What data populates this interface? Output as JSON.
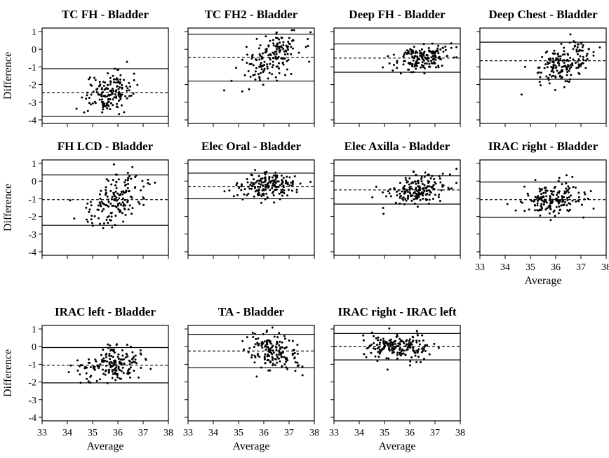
{
  "figure": {
    "ylabel": "Difference",
    "xlabel": "Average",
    "yticks": [
      "1",
      "0",
      "-1",
      "-2",
      "-3",
      "-4"
    ],
    "xticks": [
      "33",
      "34",
      "35",
      "36",
      "37",
      "38"
    ]
  },
  "chart_data": [
    {
      "type": "scatter",
      "title": "TC FH - Bladder",
      "xlim": [
        33,
        38
      ],
      "ylim": [
        -4.2,
        1.2
      ],
      "mean_diff": -2.45,
      "upper_loa": -1.1,
      "lower_loa": -3.8,
      "cloud": {
        "x_mean": 35.6,
        "x_sd": 0.45,
        "y_mean": -2.45,
        "y_sd": 0.55,
        "slope": 0.35,
        "n": 160
      },
      "show_x_axis": false
    },
    {
      "type": "scatter",
      "title": "TC FH2 - Bladder",
      "xlim": [
        33,
        38
      ],
      "ylim": [
        -4.2,
        1.2
      ],
      "mean_diff": -0.45,
      "upper_loa": 0.85,
      "lower_loa": -1.8,
      "cloud": {
        "x_mean": 36.3,
        "x_sd": 0.6,
        "y_mean": -0.45,
        "y_sd": 0.6,
        "slope": 0.55,
        "n": 170
      },
      "show_x_axis": false
    },
    {
      "type": "scatter",
      "title": "Deep FH - Bladder",
      "xlim": [
        33,
        38
      ],
      "ylim": [
        -4.2,
        1.2
      ],
      "mean_diff": -0.5,
      "upper_loa": 0.3,
      "lower_loa": -1.3,
      "cloud": {
        "x_mean": 36.5,
        "x_sd": 0.55,
        "y_mean": -0.45,
        "y_sd": 0.35,
        "slope": 0.2,
        "n": 170
      },
      "show_x_axis": false
    },
    {
      "type": "scatter",
      "title": "Deep Chest - Bladder",
      "xlim": [
        33,
        38
      ],
      "ylim": [
        -4.2,
        1.2
      ],
      "mean_diff": -0.65,
      "upper_loa": 0.4,
      "lower_loa": -1.7,
      "cloud": {
        "x_mean": 36.4,
        "x_sd": 0.55,
        "y_mean": -0.65,
        "y_sd": 0.55,
        "slope": 0.5,
        "n": 170
      },
      "show_x_axis": false
    },
    {
      "type": "scatter",
      "title": "FH LCD - Bladder",
      "xlim": [
        33,
        38
      ],
      "ylim": [
        -4.2,
        1.2
      ],
      "mean_diff": -1.05,
      "upper_loa": 0.35,
      "lower_loa": -2.5,
      "cloud": {
        "x_mean": 35.9,
        "x_sd": 0.6,
        "y_mean": -1.05,
        "y_sd": 0.7,
        "slope": 0.45,
        "n": 160
      },
      "show_x_axis": false
    },
    {
      "type": "scatter",
      "title": "Elec Oral - Bladder",
      "xlim": [
        33,
        38
      ],
      "ylim": [
        -4.2,
        1.2
      ],
      "mean_diff": -0.3,
      "upper_loa": 0.45,
      "lower_loa": -1.0,
      "cloud": {
        "x_mean": 36.2,
        "x_sd": 0.6,
        "y_mean": -0.25,
        "y_sd": 0.35,
        "slope": 0.1,
        "n": 170
      },
      "show_x_axis": false
    },
    {
      "type": "scatter",
      "title": "Elec Axilla - Bladder",
      "xlim": [
        33,
        38
      ],
      "ylim": [
        -4.2,
        1.2
      ],
      "mean_diff": -0.5,
      "upper_loa": 0.3,
      "lower_loa": -1.3,
      "cloud": {
        "x_mean": 36.4,
        "x_sd": 0.6,
        "y_mean": -0.5,
        "y_sd": 0.4,
        "slope": 0.2,
        "n": 180
      },
      "show_x_axis": false
    },
    {
      "type": "scatter",
      "title": "IRAC right - Bladder",
      "xlim": [
        33,
        38
      ],
      "ylim": [
        -4.2,
        1.2
      ],
      "mean_diff": -1.05,
      "upper_loa": -0.05,
      "lower_loa": -2.05,
      "cloud": {
        "x_mean": 35.9,
        "x_sd": 0.6,
        "y_mean": -1.05,
        "y_sd": 0.45,
        "slope": 0.1,
        "n": 170
      },
      "show_x_axis": true
    },
    {
      "type": "scatter",
      "title": "IRAC left - Bladder",
      "xlim": [
        33,
        38
      ],
      "ylim": [
        -4.2,
        1.2
      ],
      "mean_diff": -1.05,
      "upper_loa": -0.05,
      "lower_loa": -2.05,
      "cloud": {
        "x_mean": 35.8,
        "x_sd": 0.6,
        "y_mean": -1.05,
        "y_sd": 0.5,
        "slope": 0.15,
        "n": 170
      },
      "show_x_axis": true
    },
    {
      "type": "scatter",
      "title": "TA - Bladder",
      "xlim": [
        33,
        38
      ],
      "ylim": [
        -4.2,
        1.2
      ],
      "mean_diff": -0.25,
      "upper_loa": 0.7,
      "lower_loa": -1.2,
      "cloud": {
        "x_mean": 36.4,
        "x_sd": 0.5,
        "y_mean": -0.25,
        "y_sd": 0.5,
        "slope": -0.35,
        "n": 160
      },
      "show_x_axis": true
    },
    {
      "type": "scatter",
      "title": "IRAC right - IRAC left",
      "xlim": [
        33,
        38
      ],
      "ylim": [
        -4.2,
        1.2
      ],
      "mean_diff": 0.0,
      "upper_loa": 0.75,
      "lower_loa": -0.75,
      "cloud": {
        "x_mean": 35.5,
        "x_sd": 0.65,
        "y_mean": 0.0,
        "y_sd": 0.35,
        "slope": 0.0,
        "n": 180
      },
      "show_x_axis": true
    }
  ]
}
